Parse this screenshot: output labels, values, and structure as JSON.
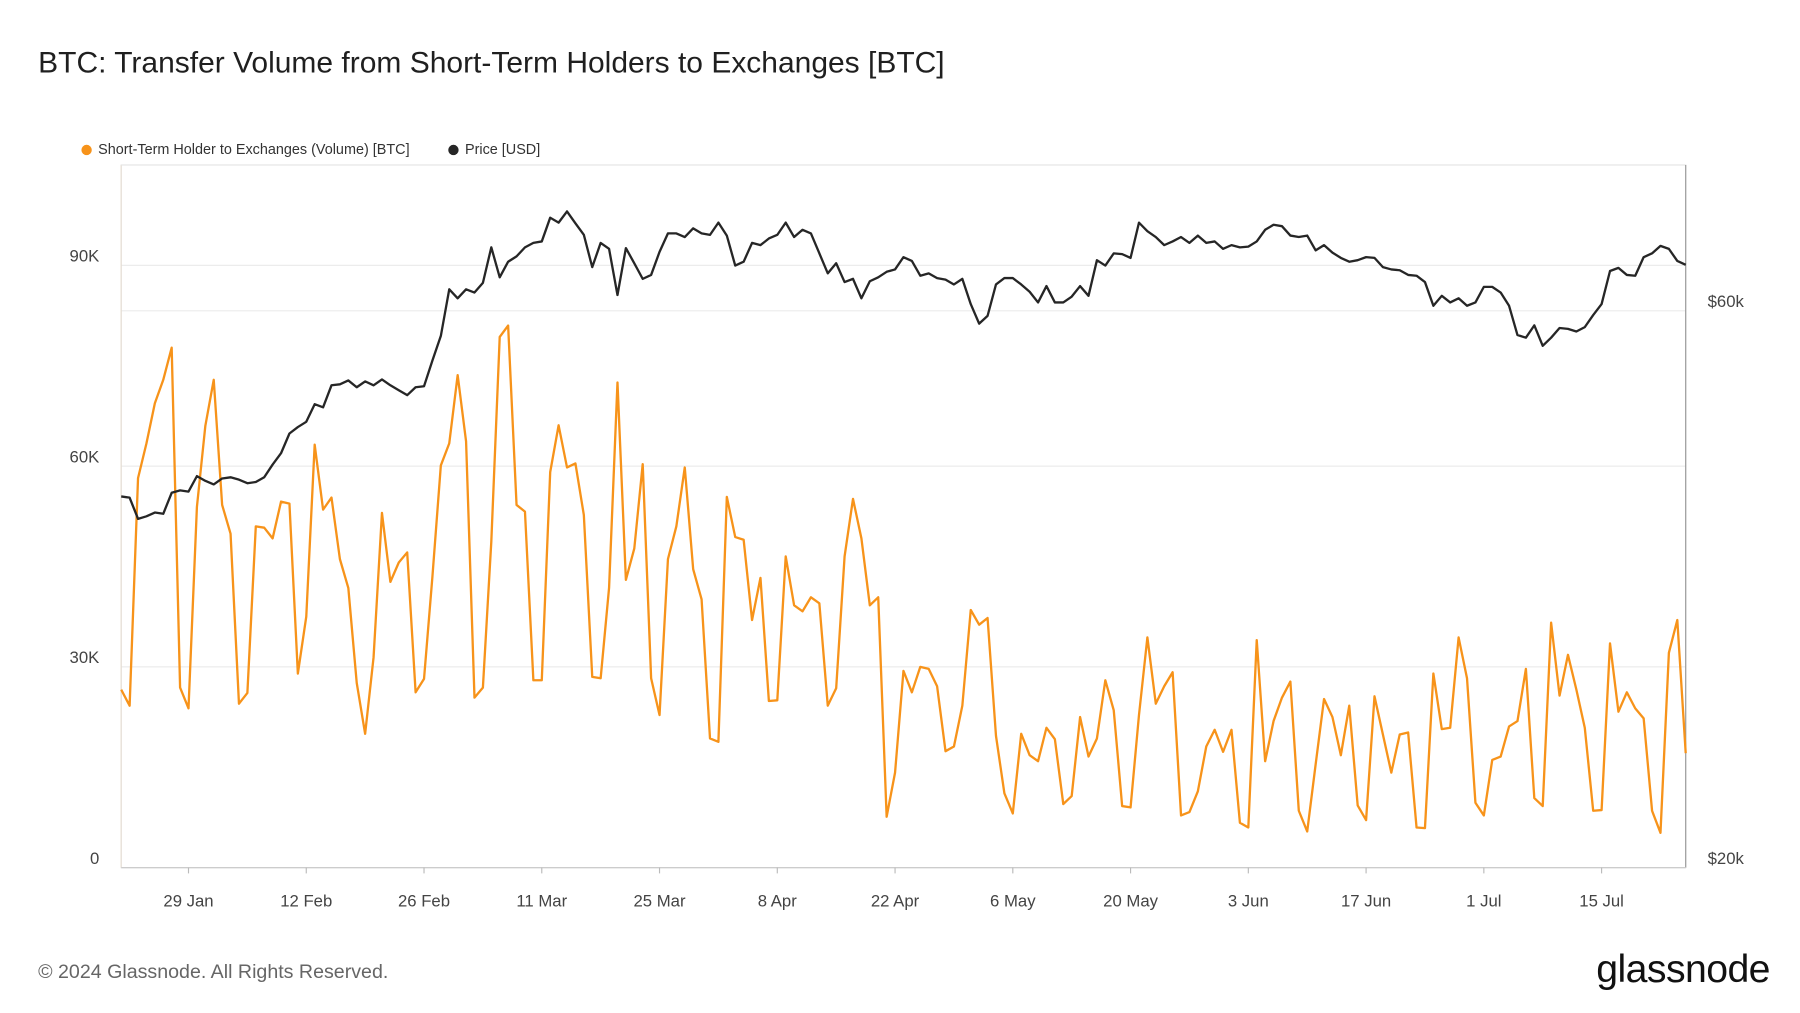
{
  "chart_data": {
    "type": "line",
    "title": "BTC: Transfer Volume from Short-Term Holders to Exchanges [BTC]",
    "x": [
      "21 Jan",
      "22 Jan",
      "23 Jan",
      "24 Jan",
      "25 Jan",
      "26 Jan",
      "27 Jan",
      "28 Jan",
      "29 Jan",
      "30 Jan",
      "31 Jan",
      "1 Feb",
      "2 Feb",
      "3 Feb",
      "4 Feb",
      "5 Feb",
      "6 Feb",
      "7 Feb",
      "8 Feb",
      "9 Feb",
      "10 Feb",
      "11 Feb",
      "12 Feb",
      "13 Feb",
      "14 Feb",
      "15 Feb",
      "16 Feb",
      "17 Feb",
      "18 Feb",
      "19 Feb",
      "20 Feb",
      "21 Feb",
      "22 Feb",
      "23 Feb",
      "24 Feb",
      "25 Feb",
      "26 Feb",
      "27 Feb",
      "28 Feb",
      "29 Feb",
      "1 Mar",
      "2 Mar",
      "3 Mar",
      "4 Mar",
      "5 Mar",
      "6 Mar",
      "7 Mar",
      "8 Mar",
      "9 Mar",
      "10 Mar",
      "11 Mar",
      "12 Mar",
      "13 Mar",
      "14 Mar",
      "15 Mar",
      "16 Mar",
      "17 Mar",
      "18 Mar",
      "19 Mar",
      "20 Mar",
      "21 Mar",
      "22 Mar",
      "23 Mar",
      "24 Mar",
      "25 Mar",
      "26 Mar",
      "27 Mar",
      "28 Mar",
      "29 Mar",
      "30 Mar",
      "31 Mar",
      "1 Apr",
      "2 Apr",
      "3 Apr",
      "4 Apr",
      "5 Apr",
      "6 Apr",
      "7 Apr",
      "8 Apr",
      "9 Apr",
      "10 Apr",
      "11 Apr",
      "12 Apr",
      "13 Apr",
      "14 Apr",
      "15 Apr",
      "16 Apr",
      "17 Apr",
      "18 Apr",
      "19 Apr",
      "20 Apr",
      "21 Apr",
      "22 Apr",
      "23 Apr",
      "24 Apr",
      "25 Apr",
      "26 Apr",
      "27 Apr",
      "28 Apr",
      "29 Apr",
      "30 Apr",
      "1 May",
      "2 May",
      "3 May",
      "4 May",
      "5 May",
      "6 May",
      "7 May",
      "8 May",
      "9 May",
      "10 May",
      "11 May",
      "12 May",
      "13 May",
      "14 May",
      "15 May",
      "16 May",
      "17 May",
      "18 May",
      "19 May",
      "20 May",
      "21 May",
      "22 May",
      "23 May",
      "24 May",
      "25 May",
      "26 May",
      "27 May",
      "28 May",
      "29 May",
      "30 May",
      "31 May",
      "1 Jun",
      "2 Jun",
      "3 Jun",
      "4 Jun",
      "5 Jun",
      "6 Jun",
      "7 Jun",
      "8 Jun",
      "9 Jun",
      "10 Jun",
      "11 Jun",
      "12 Jun",
      "13 Jun",
      "14 Jun",
      "15 Jun",
      "16 Jun",
      "17 Jun",
      "18 Jun",
      "19 Jun",
      "20 Jun",
      "21 Jun",
      "22 Jun",
      "23 Jun",
      "24 Jun",
      "25 Jun",
      "26 Jun",
      "27 Jun",
      "28 Jun",
      "29 Jun",
      "30 Jun",
      "1 Jul",
      "2 Jul",
      "3 Jul",
      "4 Jul",
      "5 Jul",
      "6 Jul",
      "7 Jul",
      "8 Jul",
      "9 Jul",
      "10 Jul",
      "11 Jul",
      "12 Jul",
      "13 Jul",
      "14 Jul",
      "15 Jul",
      "16 Jul",
      "17 Jul",
      "18 Jul",
      "19 Jul",
      "20 Jul",
      "21 Jul",
      "22 Jul",
      "23 Jul",
      "24 Jul",
      "25 Jul"
    ],
    "xticks": [
      "29 Jan",
      "12 Feb",
      "26 Feb",
      "11 Mar",
      "25 Mar",
      "8 Apr",
      "22 Apr",
      "6 May",
      "20 May",
      "3 Jun",
      "17 Jun",
      "1 Jul",
      "15 Jul"
    ],
    "ylim": [
      0,
      105000
    ],
    "yticks": [
      0,
      {
        "value": 30000,
        "label": "30K"
      },
      {
        "value": 60000,
        "label": "60K"
      },
      {
        "value": 90000,
        "label": "90K"
      }
    ],
    "y2lim": [
      20000,
      80000
    ],
    "y2_log_scale": true,
    "y2ticks": [
      {
        "value": 20000,
        "label": "$20k"
      },
      {
        "value": 60000,
        "label": "$60k"
      }
    ],
    "grid": true,
    "legend": "top-left",
    "series": [
      {
        "name": "Short-Term Holder to Exchanges (Volume) [BTC]",
        "color": "#f7931a",
        "values": [
          26600,
          24200,
          58200,
          63400,
          69400,
          72900,
          77700,
          26900,
          23800,
          53900,
          66000,
          72900,
          54200,
          49900,
          24500,
          26100,
          51000,
          50800,
          49200,
          54700,
          54400,
          29000,
          37500,
          63200,
          53500,
          55300,
          46100,
          41800,
          27600,
          20000,
          31400,
          53000,
          42700,
          45600,
          47100,
          26200,
          28200,
          43500,
          60100,
          63400,
          73600,
          63700,
          25400,
          26900,
          48700,
          79300,
          81000,
          54200,
          53200,
          28000,
          28000,
          59100,
          66100,
          59800,
          60400,
          52700,
          28500,
          28300,
          41800,
          72500,
          43000,
          47700,
          60300,
          28300,
          22800,
          46100,
          51000,
          59800,
          44600,
          40100,
          19300,
          18800,
          55400,
          49400,
          49000,
          37000,
          43300,
          24900,
          25000,
          46500,
          39200,
          38300,
          40400,
          39500,
          24200,
          26800,
          46500,
          55100,
          49200,
          39200,
          40400,
          7600,
          14200,
          29400,
          26200,
          30000,
          29700,
          27100,
          17400,
          18100,
          24200,
          38500,
          36300,
          37300,
          19700,
          11100,
          8100,
          20000,
          16800,
          15900,
          20900,
          19200,
          9500,
          10700,
          22500,
          16600,
          19300,
          28000,
          23500,
          9200,
          9000,
          22800,
          34400,
          24500,
          27100,
          29200,
          7800,
          8300,
          11400,
          18100,
          20600,
          17300,
          20600,
          6700,
          6000,
          34000,
          15900,
          21900,
          25400,
          27800,
          8500,
          5400,
          15400,
          25200,
          22500,
          16800,
          24200,
          9300,
          7100,
          25600,
          19900,
          14200,
          19900,
          20200,
          6000,
          5900,
          29000,
          20700,
          20900,
          34400,
          28300,
          9700,
          7800,
          16100,
          16600,
          21100,
          21900,
          29700,
          10400,
          9200,
          36600,
          25700,
          31800,
          26600,
          20900,
          8500,
          8600,
          33500,
          23300,
          26200,
          23800,
          22300,
          8500,
          5200,
          32100,
          37000,
          17100
        ]
      },
      {
        "name": "Price [USD]",
        "color": "#262626",
        "axis": "y2",
        "values": [
          41600,
          41500,
          39800,
          40000,
          40300,
          40200,
          41900,
          42100,
          42000,
          43300,
          42900,
          42600,
          43100,
          43200,
          43000,
          42700,
          42800,
          43200,
          44300,
          45300,
          47100,
          47700,
          48200,
          49900,
          49600,
          51800,
          51900,
          52300,
          51600,
          52200,
          51800,
          52400,
          51800,
          51300,
          50800,
          51600,
          51700,
          54400,
          57100,
          62600,
          61500,
          62600,
          62200,
          63400,
          68000,
          64100,
          66100,
          66800,
          68000,
          68600,
          68800,
          72100,
          71400,
          73000,
          71300,
          69700,
          65400,
          68600,
          67800,
          61900,
          67900,
          65900,
          63900,
          64400,
          67400,
          69900,
          69900,
          69400,
          70600,
          69900,
          69700,
          71400,
          69600,
          65600,
          66100,
          68600,
          68300,
          69200,
          69700,
          71400,
          69400,
          70400,
          69900,
          67200,
          64600,
          65900,
          63500,
          63900,
          61500,
          63600,
          64100,
          64800,
          65100,
          66700,
          66200,
          64300,
          64600,
          64000,
          63800,
          63200,
          63900,
          60800,
          58500,
          59400,
          63200,
          64000,
          64000,
          63200,
          62300,
          61000,
          63000,
          61000,
          61000,
          61700,
          63000,
          61800,
          66300,
          65600,
          67200,
          67100,
          66600,
          71400,
          70200,
          69400,
          68300,
          68800,
          69400,
          68600,
          69600,
          68600,
          68800,
          67800,
          68300,
          68000,
          68100,
          68800,
          70400,
          71100,
          70900,
          69600,
          69400,
          69600,
          67600,
          68300,
          67300,
          66600,
          66100,
          66300,
          66700,
          66600,
          65400,
          65100,
          65000,
          64400,
          64300,
          63500,
          60600,
          61800,
          61000,
          61500,
          60600,
          61000,
          62900,
          62900,
          62200,
          60600,
          57200,
          56900,
          58300,
          56000,
          56900,
          58000,
          57900,
          57600,
          58100,
          59500,
          60800,
          64900,
          65300,
          64400,
          64300,
          66700,
          67200,
          68200,
          67800,
          66200,
          65700
        ]
      }
    ]
  },
  "footer": {
    "copyright": "© 2024 Glassnode. All Rights Reserved.",
    "brand": "glassnode"
  }
}
